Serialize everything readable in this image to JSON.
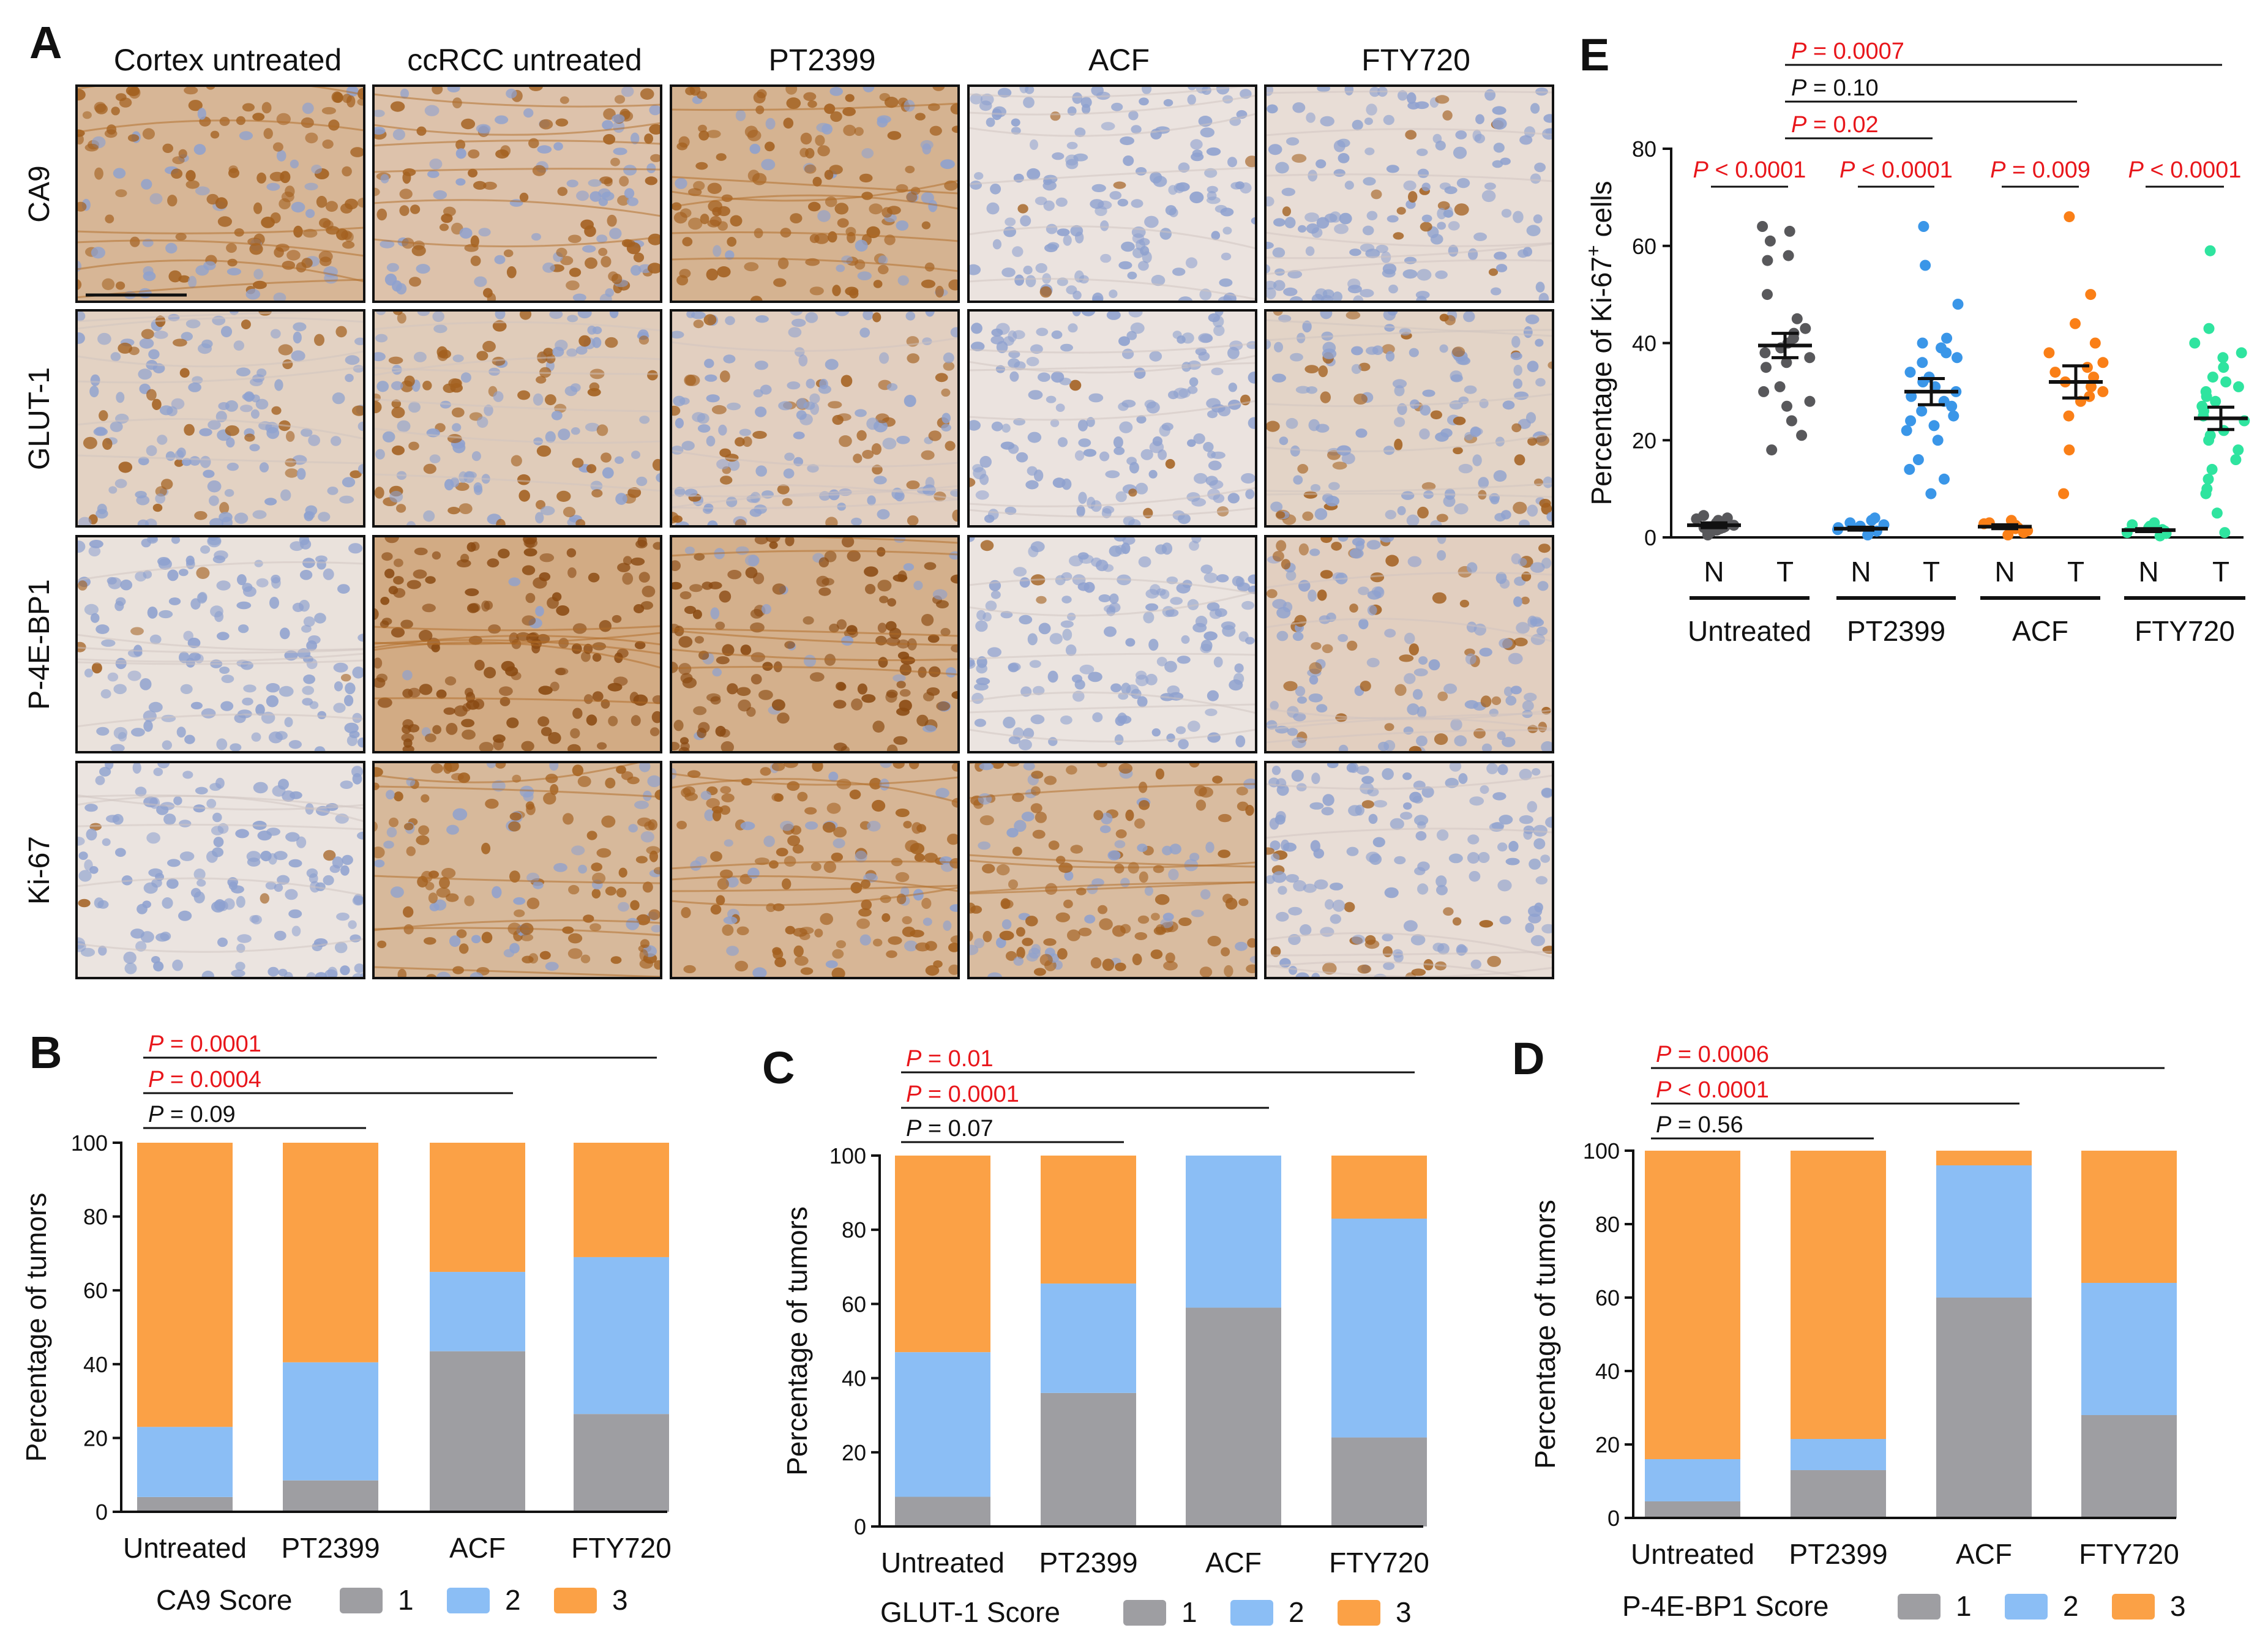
{
  "panel_letters": {
    "a": "A",
    "b": "B",
    "c": "C",
    "d": "D",
    "e": "E"
  },
  "ihc": {
    "columns": [
      "Cortex untreated",
      "ccRCC untreated",
      "PT2399",
      "ACF",
      "FTY720"
    ],
    "rows": [
      "CA9",
      "GLUT-1",
      "P-4E-BP1",
      "Ki-67"
    ],
    "stain_level": [
      [
        0.75,
        0.55,
        0.8,
        0.04,
        0.12
      ],
      [
        0.3,
        0.4,
        0.35,
        0.03,
        0.28
      ],
      [
        0.05,
        0.92,
        0.85,
        0.02,
        0.35
      ],
      [
        0.02,
        0.7,
        0.75,
        0.65,
        0.12
      ]
    ],
    "colors": {
      "stain": "#b8722a",
      "counterstain": "#8ea1cf",
      "background": "#ece6e3"
    }
  },
  "score_colors": {
    "1": "#9e9ea2",
    "2": "#8bbef5",
    "3": "#fba146"
  },
  "chart_data": [
    {
      "panel": "B",
      "type": "bar",
      "stacked": true,
      "categories": [
        "Untreated",
        "PT2399",
        "ACF",
        "FTY720"
      ],
      "ylabel": "Percentage of tumors",
      "ylim": [
        0,
        100
      ],
      "yticks": [
        "0",
        "20",
        "40",
        "60",
        "80",
        "100"
      ],
      "legend_title": "CA9 Score",
      "series": [
        {
          "name": "1",
          "color": "#9e9ea2",
          "values": [
            4,
            8.5,
            43.5,
            26.5
          ]
        },
        {
          "name": "2",
          "color": "#8bbef5",
          "values": [
            19,
            32,
            21.5,
            42.5
          ]
        },
        {
          "name": "3",
          "color": "#fba146",
          "values": [
            77,
            59.5,
            35,
            31
          ]
        }
      ],
      "pvalues": [
        {
          "p": "P",
          "text": " = 0.0001",
          "color": "red",
          "to": 3
        },
        {
          "p": "P",
          "text": " = 0.0004",
          "color": "red",
          "to": 2
        },
        {
          "p": "P",
          "text": " = 0.09",
          "color": "black",
          "to": 1
        }
      ]
    },
    {
      "panel": "C",
      "type": "bar",
      "stacked": true,
      "categories": [
        "Untreated",
        "PT2399",
        "ACF",
        "FTY720"
      ],
      "ylabel": "Percentage of tumors",
      "ylim": [
        0,
        100
      ],
      "yticks": [
        "0",
        "20",
        "40",
        "60",
        "80",
        "100"
      ],
      "legend_title": "GLUT-1 Score",
      "series": [
        {
          "name": "1",
          "color": "#9e9ea2",
          "values": [
            8,
            36,
            59,
            24
          ]
        },
        {
          "name": "2",
          "color": "#8bbef5",
          "values": [
            39,
            29.5,
            41,
            59
          ]
        },
        {
          "name": "3",
          "color": "#fba146",
          "values": [
            53,
            34.5,
            0,
            17
          ]
        }
      ],
      "pvalues": [
        {
          "p": "P",
          "text": " = 0.01",
          "color": "red",
          "to": 3
        },
        {
          "p": "P",
          "text": " = 0.0001",
          "color": "red",
          "to": 2
        },
        {
          "p": "P",
          "text": " = 0.07",
          "color": "black",
          "to": 1
        }
      ]
    },
    {
      "panel": "D",
      "type": "bar",
      "stacked": true,
      "categories": [
        "Untreated",
        "PT2399",
        "ACF",
        "FTY720"
      ],
      "ylabel": "Percentage of tumors",
      "ylim": [
        0,
        100
      ],
      "yticks": [
        "0",
        "20",
        "40",
        "60",
        "80",
        "100"
      ],
      "legend_title": "P-4E-BP1 Score",
      "series": [
        {
          "name": "1",
          "color": "#9e9ea2",
          "values": [
            4.5,
            13,
            60,
            28
          ]
        },
        {
          "name": "2",
          "color": "#8bbef5",
          "values": [
            11.5,
            8.5,
            36,
            36
          ]
        },
        {
          "name": "3",
          "color": "#fba146",
          "values": [
            84,
            78.5,
            4,
            36
          ]
        }
      ],
      "pvalues": [
        {
          "p": "P",
          "text": " = 0.0006",
          "color": "red",
          "to": 3
        },
        {
          "p": "P",
          "text": " < 0.0001",
          "color": "red",
          "to": 2
        },
        {
          "p": "P",
          "text": " = 0.56",
          "color": "black",
          "to": 1
        }
      ]
    },
    {
      "panel": "E",
      "type": "scatter",
      "ylabel": "Percentage of Ki-67",
      "ylabel_sup": "+",
      "ylabel_end": " cells",
      "ylim": [
        0,
        80
      ],
      "yticks": [
        "0",
        "20",
        "40",
        "60",
        "80"
      ],
      "groups": [
        "Untreated",
        "PT2399",
        "ACF",
        "FTY720"
      ],
      "subgroups": [
        "N",
        "T"
      ],
      "series": [
        {
          "group": "Untreated",
          "sub": "N",
          "color": "#58585b",
          "mean": 2.5,
          "sem": 0.5,
          "values": [
            0.5,
            1,
            1.2,
            1.5,
            1.8,
            2,
            2,
            2.2,
            2.5,
            2.5,
            2.8,
            3,
            3,
            3.2,
            3.5,
            3.8,
            4,
            4.5
          ]
        },
        {
          "group": "Untreated",
          "sub": "T",
          "color": "#58585b",
          "mean": 39.5,
          "sem": 2.5,
          "values": [
            64,
            63,
            61,
            58,
            57,
            50,
            45,
            43,
            42,
            41,
            40,
            39,
            38,
            37,
            36,
            35,
            31,
            30,
            28,
            27,
            24,
            21,
            18
          ]
        },
        {
          "group": "PT2399",
          "sub": "N",
          "color": "#3a96e8",
          "mean": 1.8,
          "sem": 0.3,
          "values": [
            0.5,
            1,
            1.3,
            1.6,
            2,
            2.3,
            2.6,
            3,
            3.5,
            4
          ]
        },
        {
          "group": "PT2399",
          "sub": "T",
          "color": "#3a96e8",
          "mean": 30,
          "sem": 2.7,
          "values": [
            64,
            56,
            48,
            41,
            40,
            39,
            38,
            37,
            36,
            34,
            33,
            32,
            31,
            30,
            29,
            28,
            27,
            26,
            25,
            24,
            23,
            22,
            20,
            16,
            14,
            12,
            9
          ]
        },
        {
          "group": "ACF",
          "sub": "N",
          "color": "#fa7f17",
          "mean": 2.2,
          "sem": 0.4,
          "values": [
            0.5,
            1,
            1.4,
            1.8,
            2,
            2.2,
            2.5,
            2.8,
            3,
            3.5
          ]
        },
        {
          "group": "ACF",
          "sub": "T",
          "color": "#fa7f17",
          "mean": 32,
          "sem": 3.3,
          "values": [
            66,
            50,
            44,
            40,
            38,
            36,
            35,
            34,
            33,
            32,
            31,
            30,
            29,
            28,
            25,
            18,
            9
          ]
        },
        {
          "group": "FTY720",
          "sub": "N",
          "color": "#2fe49f",
          "mean": 1.5,
          "sem": 0.3,
          "values": [
            0.3,
            0.8,
            1,
            1.3,
            1.6,
            2,
            2.3,
            2.6,
            3
          ]
        },
        {
          "group": "FTY720",
          "sub": "T",
          "color": "#2fe49f",
          "mean": 24.5,
          "sem": 2.3,
          "values": [
            59,
            43,
            40,
            38,
            37,
            35,
            33,
            32,
            31,
            30,
            29,
            28,
            27,
            26,
            25,
            24,
            22,
            21,
            20,
            18,
            16,
            14,
            12,
            10,
            9,
            5,
            1
          ]
        }
      ],
      "within_pvalues": [
        {
          "group": "Untreated",
          "p": "P",
          "text": " < 0.0001",
          "color": "red"
        },
        {
          "group": "PT2399",
          "p": "P",
          "text": " < 0.0001",
          "color": "red"
        },
        {
          "group": "ACF",
          "p": "P",
          "text": " = 0.009",
          "color": "red"
        },
        {
          "group": "FTY720",
          "p": "P",
          "text": " < 0.0001",
          "color": "red"
        }
      ],
      "between_pvalues": [
        {
          "p": "P",
          "text": " = 0.0007",
          "color": "red",
          "to": "FTY720"
        },
        {
          "p": "P",
          "text": " = 0.10",
          "color": "black",
          "to": "ACF"
        },
        {
          "p": "P",
          "text": " = 0.02",
          "color": "red",
          "to": "PT2399"
        }
      ]
    }
  ]
}
